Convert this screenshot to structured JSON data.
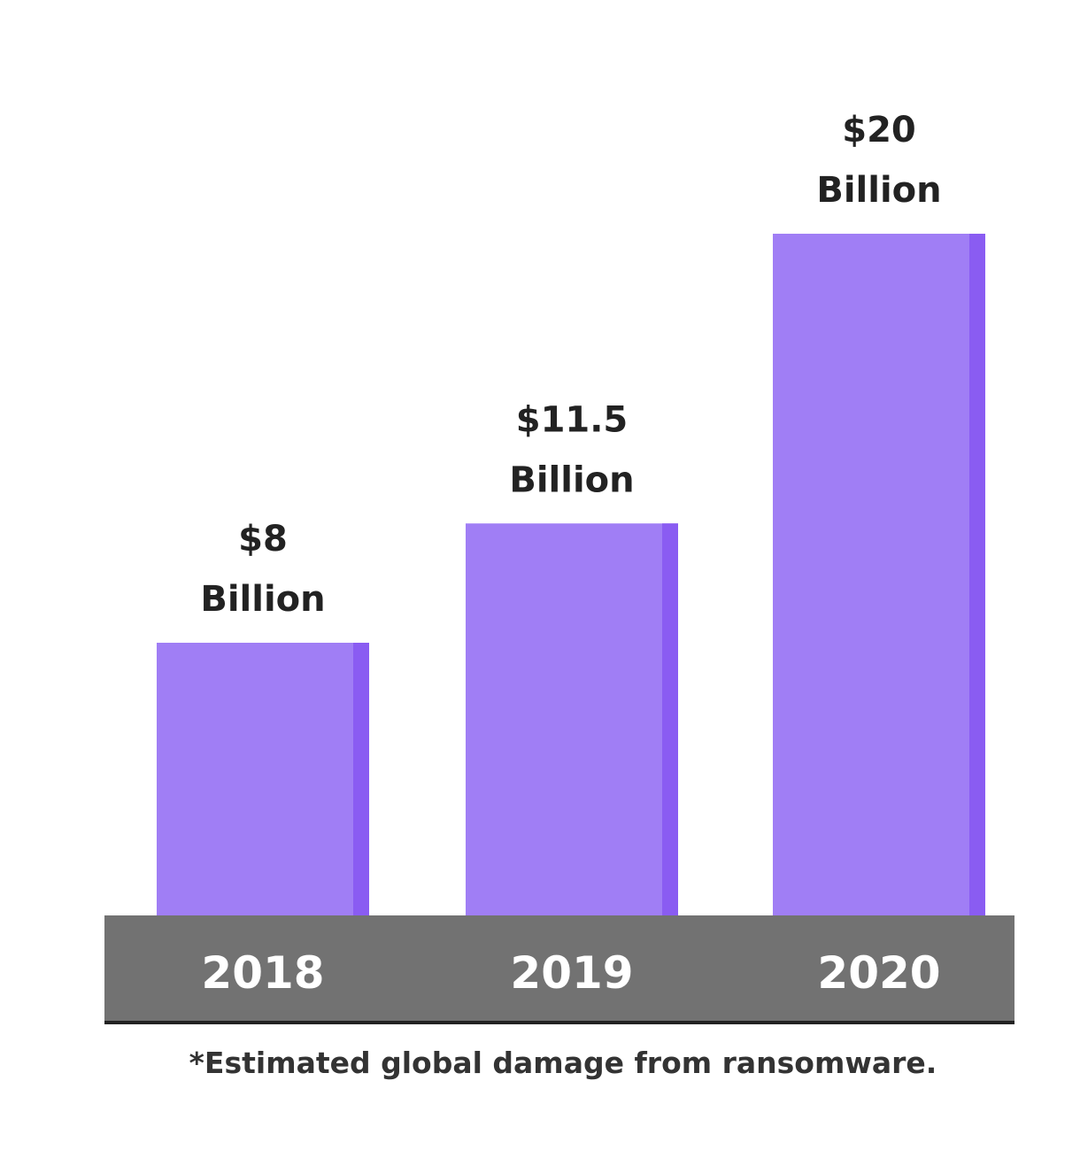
{
  "chart_data": {
    "type": "bar",
    "categories": [
      "2018",
      "2019",
      "2020"
    ],
    "values": [
      8,
      11.5,
      20
    ],
    "value_labels": [
      [
        "$8",
        "Billion"
      ],
      [
        "$11.5",
        "Billion"
      ],
      [
        "$20",
        "Billion"
      ]
    ],
    "title": "",
    "xlabel": "",
    "ylabel": "",
    "ylim": [
      0,
      20
    ],
    "grid": false,
    "footnote": "*Estimated global damage from ransomware."
  },
  "colors": {
    "bar": "#a07ef5",
    "bar_edge": "#8a5cf2",
    "axis_band": "#727272",
    "axis_line": "#222222",
    "label_text": "#222222",
    "tick_text": "#ffffff"
  }
}
